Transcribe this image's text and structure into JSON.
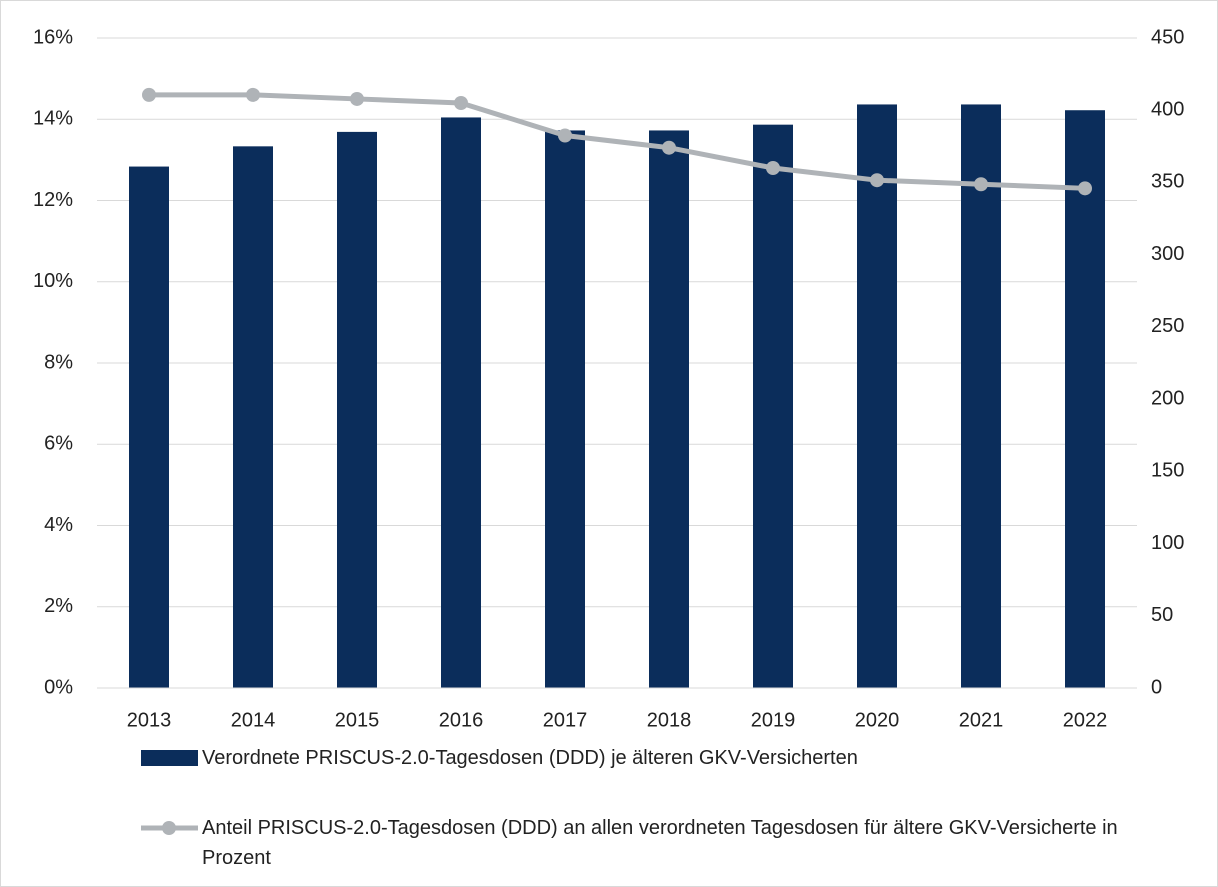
{
  "chart_data": {
    "type": "bar",
    "categories": [
      "2013",
      "2014",
      "2015",
      "2016",
      "2017",
      "2018",
      "2019",
      "2020",
      "2021",
      "2022"
    ],
    "series": [
      {
        "name": "Verordnete PRISCUS-2.0-Tagesdosen (DDD) je älteren GKV-Versicherten",
        "type": "bar",
        "axis": "y2",
        "color": "#0b2d5b",
        "values": [
          361,
          375,
          385,
          395,
          386,
          386,
          390,
          404,
          404,
          400
        ]
      },
      {
        "name": "Anteil PRISCUS-2.0-Tagesdosen (DDD) an allen verordneten Tagesdosen für ältere GKV-Versicherte in Prozent",
        "type": "line",
        "axis": "y",
        "color": "#afb3b7",
        "values": [
          14.6,
          14.6,
          14.5,
          14.4,
          13.6,
          13.3,
          12.8,
          12.5,
          12.4,
          12.3
        ]
      }
    ],
    "ylim": [
      0,
      16
    ],
    "yticks": [
      {
        "value": 0,
        "label": "0%"
      },
      {
        "value": 2,
        "label": "2%"
      },
      {
        "value": 4,
        "label": "4%"
      },
      {
        "value": 6,
        "label": "6%"
      },
      {
        "value": 8,
        "label": "8%"
      },
      {
        "value": 10,
        "label": "10%"
      },
      {
        "value": 12,
        "label": "12%"
      },
      {
        "value": 14,
        "label": "14%"
      },
      {
        "value": 16,
        "label": "16%"
      }
    ],
    "y2lim": [
      0,
      450
    ],
    "y2ticks": [
      0,
      50,
      100,
      150,
      200,
      250,
      300,
      350,
      400,
      450
    ],
    "grid": true,
    "legend": "bottom"
  }
}
